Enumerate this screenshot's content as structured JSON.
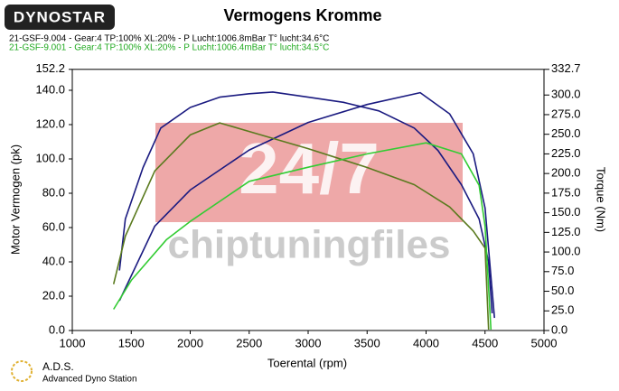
{
  "chart_data": {
    "type": "line",
    "title": "Vermogens Kromme",
    "logo": "DYNOSTAR",
    "legend": [
      {
        "text": "21-GSF-9.004 - Gear:4 TP:100% XL:20%   - P Lucht:1006.8mBar T° lucht:34.6°C",
        "color": "#000000"
      },
      {
        "text": "21-GSF-9.001 - Gear:4 TP:100% XL:20%   - P Lucht:1006.4mBar T° lucht:34.5°C",
        "color": "#22aa22"
      }
    ],
    "watermark": [
      "24/7",
      "chiptuningfiles"
    ],
    "footer": [
      "A.D.S.",
      "Advanced Dyno Station"
    ],
    "xlabel": "Toerental (rpm)",
    "ylabel": "Motor Vermogen (pk)",
    "y2label": "Torque (Nm)",
    "xlim": [
      1000,
      5000
    ],
    "xticks": [
      1000,
      1500,
      2000,
      2500,
      3000,
      3500,
      4000,
      4500,
      5000
    ],
    "ylim": [
      0,
      152.2
    ],
    "yticks": [
      {
        "value": 0,
        "label": "0.0"
      },
      {
        "value": 20,
        "label": "20.0"
      },
      {
        "value": 40,
        "label": "40.0"
      },
      {
        "value": 60,
        "label": "60.0"
      },
      {
        "value": 80,
        "label": "80.0"
      },
      {
        "value": 100,
        "label": "100.0"
      },
      {
        "value": 120,
        "label": "120.0"
      },
      {
        "value": 140,
        "label": "140.0"
      },
      152.2
    ],
    "y2lim": [
      0,
      332.7
    ],
    "y2ticks": [
      {
        "value": 0,
        "label": "0.0"
      },
      {
        "value": 25,
        "label": "25.0"
      },
      {
        "value": 50,
        "label": "50.0"
      },
      {
        "value": 75,
        "label": "75.0"
      },
      {
        "value": 100,
        "label": "100.0"
      },
      {
        "value": 125,
        "label": "125.0"
      },
      {
        "value": 150,
        "label": "150.0"
      },
      {
        "value": 175,
        "label": "175.0"
      },
      {
        "value": 200,
        "label": "200.0"
      },
      {
        "value": 225,
        "label": "225.0"
      },
      {
        "value": 250,
        "label": "250.0"
      },
      {
        "value": 275,
        "label": "275.0"
      },
      {
        "value": 300,
        "label": "300.0"
      },
      332.7
    ],
    "series": [
      {
        "name": "21-GSF-9.004 Vermogen",
        "color": "#1a1a80",
        "x": [
          1400,
          1450,
          1600,
          1750,
          2000,
          2250,
          2500,
          2700,
          3000,
          3300,
          3600,
          3900,
          4100,
          4300,
          4450,
          4530,
          4560
        ],
        "values": [
          35,
          65,
          95,
          118,
          130,
          136,
          138,
          139,
          136,
          133,
          128,
          118,
          105,
          85,
          65,
          40,
          10
        ]
      },
      {
        "name": "21-GSF-9.004 Torque",
        "color": "#1a1a80",
        "axis": "y2",
        "x": [
          1400,
          1700,
          2000,
          2500,
          3000,
          3500,
          3950,
          4200,
          4400,
          4500,
          4580
        ],
        "values": [
          38,
          133,
          179,
          230,
          265,
          288,
          303,
          276,
          225,
          156,
          16
        ]
      },
      {
        "name": "21-GSF-9.001 Vermogen",
        "color": "#5a7a1e",
        "x": [
          1350,
          1450,
          1700,
          2000,
          2250,
          2500,
          3000,
          3500,
          3900,
          4200,
          4400,
          4500,
          4530
        ],
        "values": [
          27,
          55,
          93,
          114,
          121,
          116,
          106,
          95,
          85,
          72,
          58,
          48,
          0.5
        ]
      },
      {
        "name": "21-GSF-9.001 Torque",
        "color": "#33cc33",
        "axis": "y2",
        "x": [
          1350,
          1500,
          1800,
          2000,
          2500,
          3000,
          3500,
          4000,
          4300,
          4450,
          4500,
          4550
        ],
        "values": [
          27,
          64,
          116,
          139,
          190,
          208,
          225,
          239,
          225,
          185,
          133,
          1
        ]
      }
    ]
  }
}
